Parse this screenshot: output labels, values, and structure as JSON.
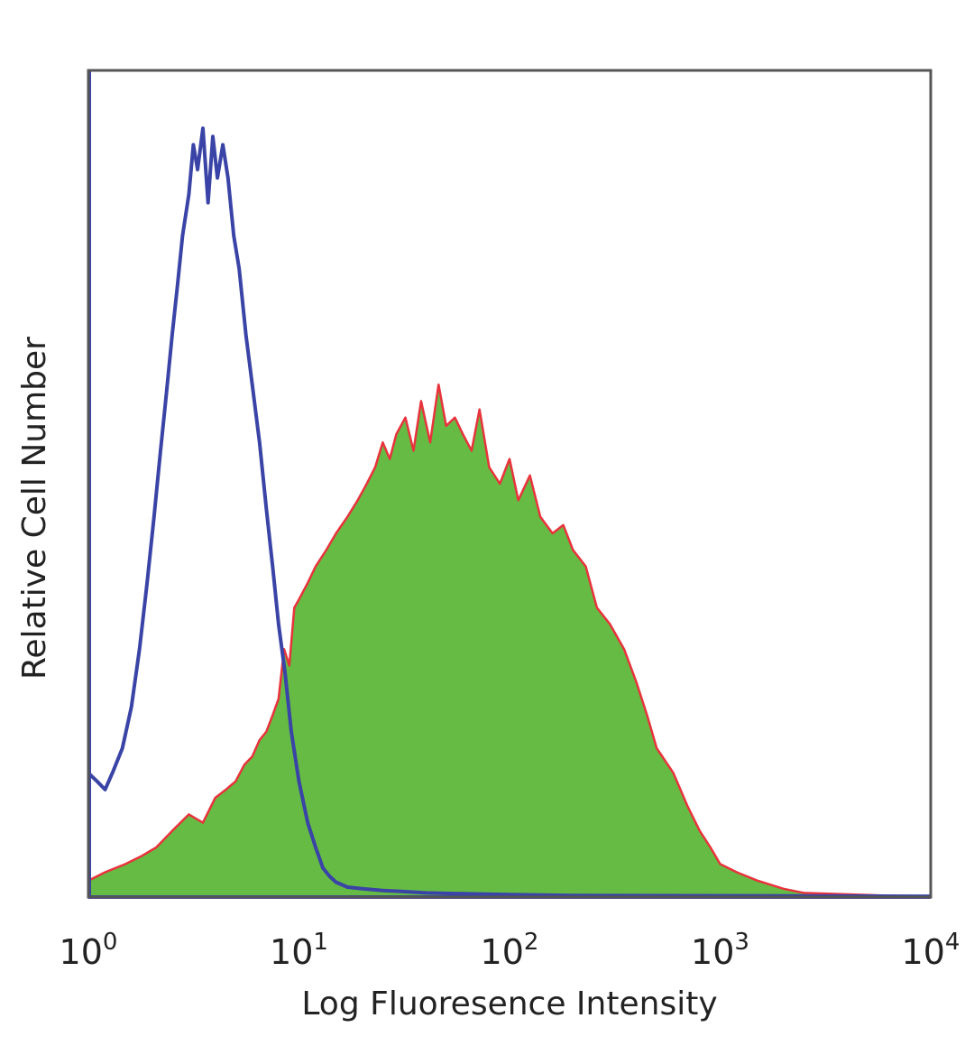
{
  "chart_data": {
    "type": "area",
    "title": "",
    "xlabel": "Log Fluoresence Intensity",
    "ylabel": "Relative Cell Number",
    "x_scale": "log",
    "xlim": [
      1,
      10000
    ],
    "ylim": [
      0,
      100
    ],
    "grid": false,
    "legend": "none",
    "x_ticks": [
      {
        "base": "10",
        "exp": "0",
        "value": 1
      },
      {
        "base": "10",
        "exp": "1",
        "value": 10
      },
      {
        "base": "10",
        "exp": "2",
        "value": 100
      },
      {
        "base": "10",
        "exp": "3",
        "value": 1000
      },
      {
        "base": "10",
        "exp": "4",
        "value": 10000
      }
    ],
    "colors": {
      "control_line": "#3a44a6",
      "stained_fill": "#66bb44",
      "stained_line": "#e8333c",
      "frame": "#555555"
    },
    "series": [
      {
        "style": "line",
        "x": [
          1.0,
          1.1,
          1.2,
          1.3,
          1.45,
          1.6,
          1.75,
          1.9,
          2.05,
          2.2,
          2.35,
          2.5,
          2.65,
          2.8,
          3.0,
          3.15,
          3.3,
          3.5,
          3.7,
          3.9,
          4.1,
          4.35,
          4.6,
          4.9,
          5.2,
          5.6,
          6.0,
          6.5,
          7.0,
          7.5,
          8.0,
          8.6,
          9.2,
          10.0,
          11.0,
          12.0,
          13.0,
          14.0,
          15.0,
          17.0,
          20.0,
          25.0,
          30.0,
          40.0,
          60.0,
          100.0,
          200.0,
          10000.0
        ],
        "y": [
          15,
          14,
          13,
          15,
          18,
          23,
          30,
          38,
          46,
          54,
          61,
          68,
          74,
          80,
          85,
          91,
          88,
          93,
          84,
          92,
          87,
          91,
          87,
          80,
          76,
          68,
          62,
          55,
          47,
          40,
          33,
          27,
          20,
          14,
          9,
          6,
          3.5,
          2.5,
          1.8,
          1.2,
          1.0,
          0.8,
          0.7,
          0.5,
          0.4,
          0.3,
          0.2,
          0.1
        ]
      },
      {
        "style": "filled-area",
        "x": [
          1.0,
          1.2,
          1.5,
          1.8,
          2.1,
          2.5,
          3.0,
          3.5,
          4.0,
          4.5,
          5.0,
          5.5,
          6.0,
          6.5,
          7.0,
          7.5,
          8.0,
          8.5,
          9.0,
          9.5,
          10.0,
          11.0,
          12.0,
          13.5,
          15.0,
          17.0,
          19.0,
          21.0,
          23.0,
          25.0,
          27.0,
          29.0,
          32.0,
          35.0,
          38.0,
          42.0,
          46.0,
          50.0,
          55.0,
          60.0,
          66.0,
          72.0,
          80.0,
          90.0,
          100.0,
          110.0,
          125.0,
          140.0,
          160.0,
          180.0,
          200.0,
          230.0,
          260.0,
          300.0,
          350.0,
          400.0,
          450.0,
          500.0,
          600.0,
          700.0,
          800.0,
          900.0,
          1000.0,
          1200.0,
          1500.0,
          2000.0,
          2500.0,
          10000.0
        ],
        "y": [
          2,
          3,
          4,
          5,
          6,
          8,
          10,
          9,
          12,
          13,
          14,
          16,
          17,
          19,
          20,
          22,
          24,
          30,
          28,
          35,
          36,
          38,
          40,
          42,
          44,
          46,
          48,
          50,
          52,
          55,
          53,
          56,
          58,
          54,
          60,
          55,
          62,
          57,
          58,
          56,
          54,
          59,
          52,
          50,
          53,
          48,
          51,
          46,
          44,
          45,
          42,
          40,
          35,
          33,
          30,
          26,
          22,
          18,
          15,
          11,
          8,
          6,
          4,
          3,
          2,
          1,
          0.5,
          0
        ]
      }
    ]
  }
}
